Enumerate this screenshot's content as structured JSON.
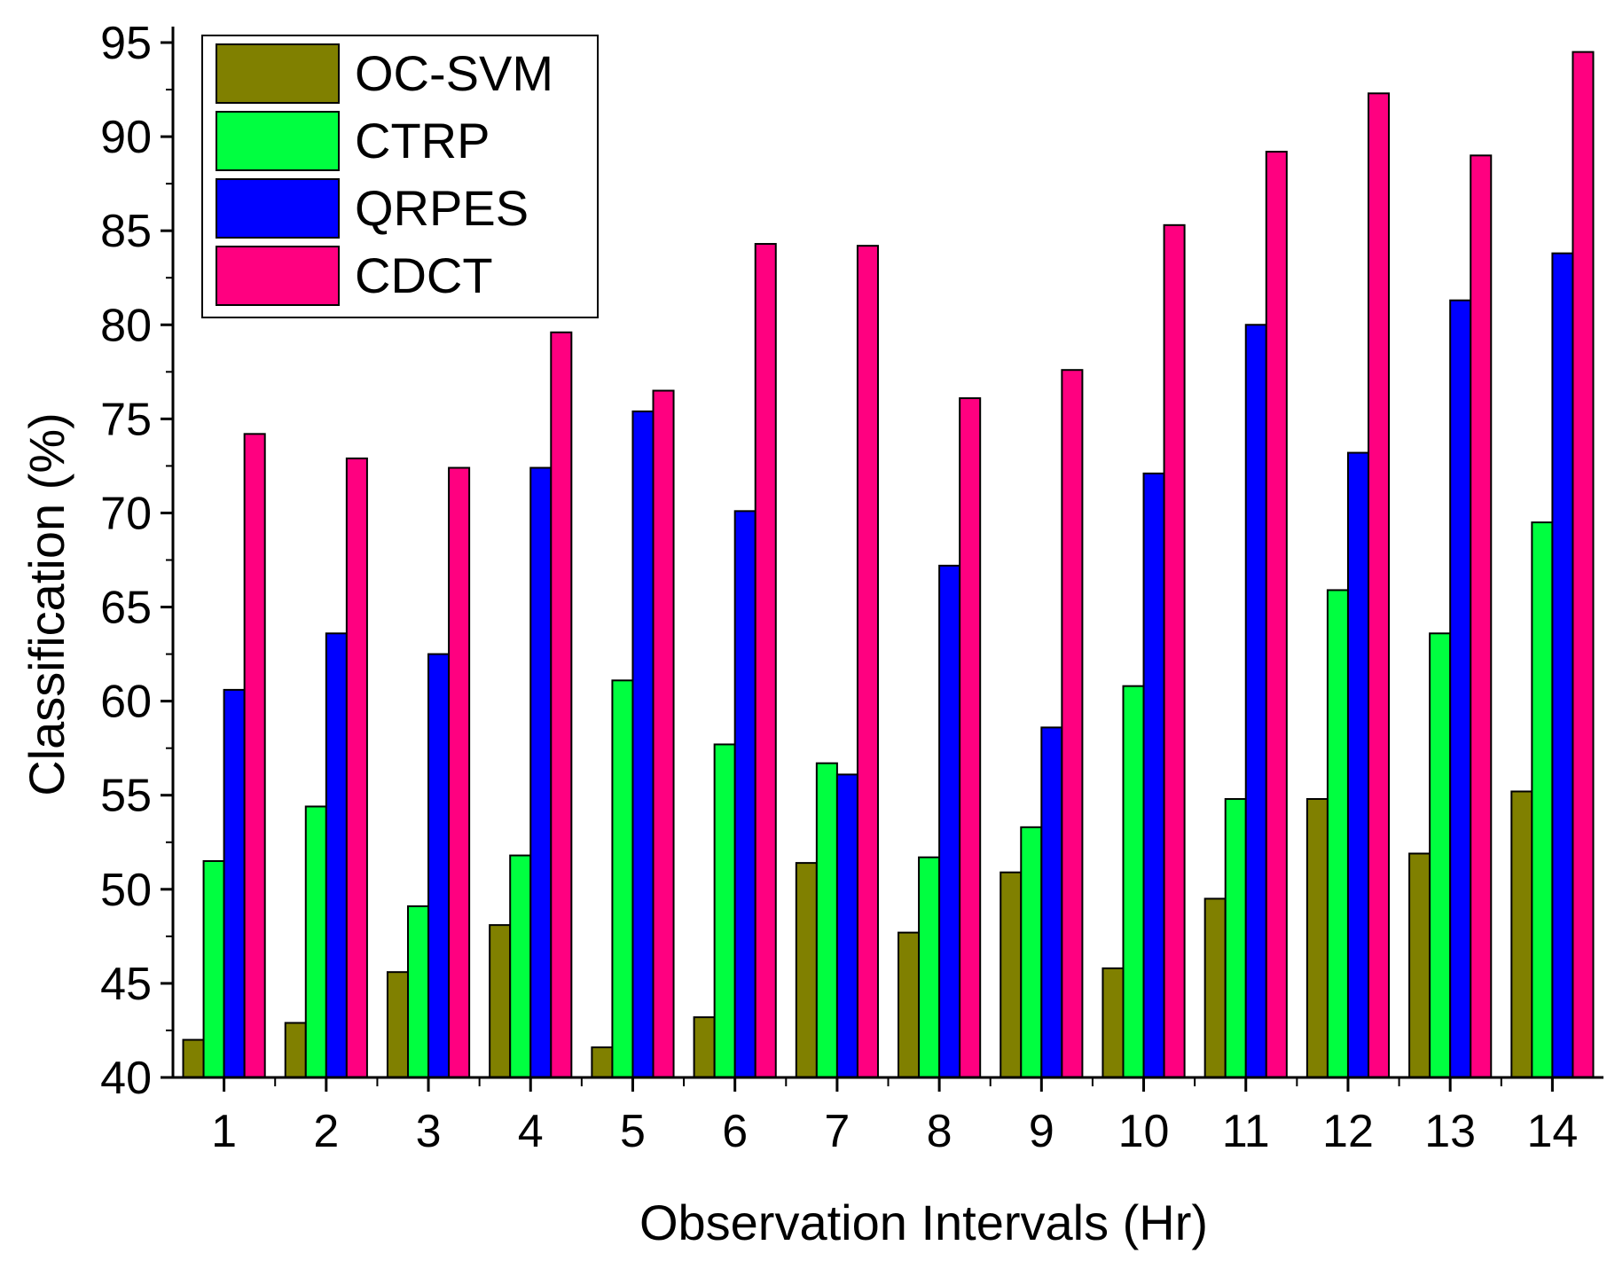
{
  "chart_data": {
    "type": "bar",
    "title": "",
    "xlabel": "Observation Intervals (Hr)",
    "ylabel": "Classification (%)",
    "ylim": [
      40,
      95
    ],
    "yticks": [
      "40",
      "45",
      "50",
      "55",
      "60",
      "65",
      "70",
      "75",
      "80",
      "85",
      "90",
      "95"
    ],
    "categories": [
      "1",
      "2",
      "3",
      "4",
      "5",
      "6",
      "7",
      "8",
      "9",
      "10",
      "11",
      "12",
      "13",
      "14"
    ],
    "legend_position": "top-left",
    "series": [
      {
        "name": "OC-SVM",
        "color": "#808000",
        "values": [
          42.0,
          42.9,
          45.6,
          48.1,
          41.6,
          43.2,
          51.4,
          47.7,
          50.9,
          45.8,
          49.5,
          54.8,
          51.9,
          55.2
        ]
      },
      {
        "name": "CTRP",
        "color": "#00FF40",
        "values": [
          51.5,
          54.4,
          49.1,
          51.8,
          61.1,
          57.7,
          56.7,
          51.7,
          53.3,
          60.8,
          54.8,
          65.9,
          63.6,
          69.5
        ]
      },
      {
        "name": "QRPES",
        "color": "#0000FF",
        "values": [
          60.6,
          63.6,
          62.5,
          72.4,
          75.4,
          70.1,
          56.1,
          67.2,
          58.6,
          72.1,
          80.0,
          73.2,
          81.3,
          83.8
        ]
      },
      {
        "name": "CDCT",
        "color": "#FF0080",
        "values": [
          74.2,
          72.9,
          72.4,
          79.6,
          76.5,
          84.3,
          84.2,
          76.1,
          77.6,
          85.3,
          89.2,
          92.3,
          89.0,
          94.5
        ]
      }
    ]
  }
}
